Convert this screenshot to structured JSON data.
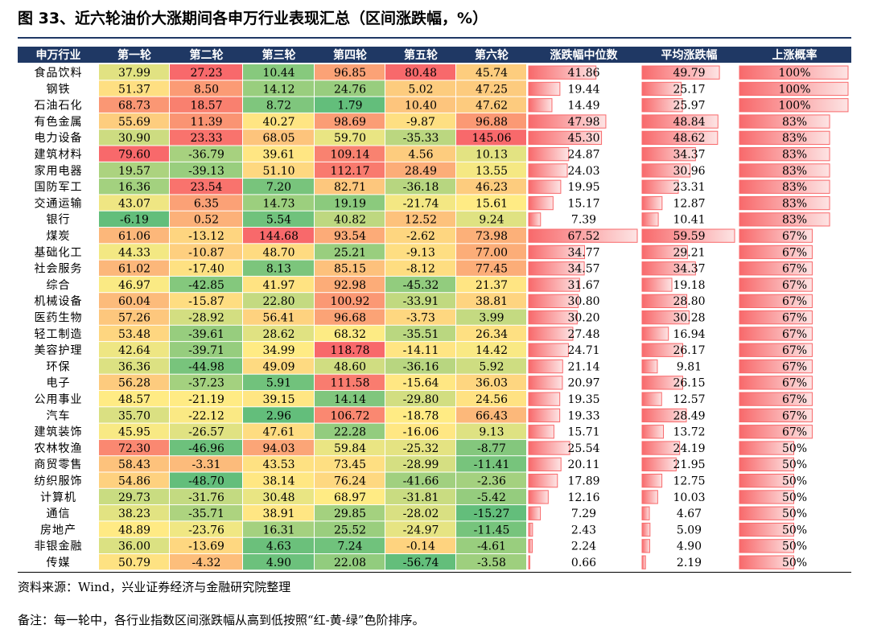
{
  "title": "图 33、近六轮油价大涨期间各申万行业表现汇总（区间涨跌幅，%）",
  "footer": {
    "source": "资料来源：Wind，兴业证券经济与金融研究院整理",
    "note": "备注：每一轮中，各行业指数区间涨跌幅从高到低按照“红-黄-绿”色阶排序。"
  },
  "colors": {
    "header_bg": "#1f3864",
    "header_text": "#ffffff",
    "red": "#f8696b",
    "yellow": "#ffeb84",
    "green": "#63be7b",
    "bar_fill": "#f8696b"
  },
  "chart_data": {
    "type": "table",
    "columns": [
      "申万行业",
      "第一轮",
      "第二轮",
      "第三轮",
      "第四轮",
      "第五轮",
      "第六轮",
      "涨跌幅中位数",
      "平均涨跌幅",
      "上涨概率"
    ],
    "rows": [
      {
        "industry": "食品饮料",
        "rounds": [
          37.99,
          27.23,
          10.44,
          96.85,
          80.48,
          45.74
        ],
        "median": "41.86",
        "mean": "49.79",
        "prob": "100%"
      },
      {
        "industry": "钢铁",
        "rounds": [
          51.37,
          8.5,
          14.12,
          24.76,
          5.02,
          47.25
        ],
        "median": "19.44",
        "mean": "25.17",
        "prob": "100%"
      },
      {
        "industry": "石油石化",
        "rounds": [
          68.73,
          18.57,
          8.72,
          1.79,
          10.4,
          47.62
        ],
        "median": "14.49",
        "mean": "25.97",
        "prob": "100%"
      },
      {
        "industry": "有色金属",
        "rounds": [
          55.69,
          11.39,
          40.27,
          98.69,
          -9.87,
          96.88
        ],
        "median": "47.98",
        "mean": "48.84",
        "prob": "83%"
      },
      {
        "industry": "电力设备",
        "rounds": [
          30.9,
          23.33,
          68.05,
          59.7,
          -35.33,
          145.06
        ],
        "median": "45.30",
        "mean": "48.62",
        "prob": "83%"
      },
      {
        "industry": "建筑材料",
        "rounds": [
          79.6,
          -36.79,
          39.61,
          109.14,
          4.56,
          10.13
        ],
        "median": "24.87",
        "mean": "34.37",
        "prob": "83%"
      },
      {
        "industry": "家用电器",
        "rounds": [
          19.57,
          -39.13,
          51.1,
          112.17,
          28.49,
          13.55
        ],
        "median": "24.03",
        "mean": "30.96",
        "prob": "83%"
      },
      {
        "industry": "国防军工",
        "rounds": [
          16.36,
          23.54,
          7.2,
          82.71,
          -36.18,
          46.23
        ],
        "median": "19.95",
        "mean": "23.31",
        "prob": "83%"
      },
      {
        "industry": "交通运输",
        "rounds": [
          43.07,
          6.35,
          14.73,
          19.19,
          -21.74,
          15.61
        ],
        "median": "15.17",
        "mean": "12.87",
        "prob": "83%"
      },
      {
        "industry": "银行",
        "rounds": [
          -6.19,
          0.52,
          5.54,
          40.82,
          12.52,
          9.24
        ],
        "median": "7.39",
        "mean": "10.41",
        "prob": "83%"
      },
      {
        "industry": "煤炭",
        "rounds": [
          61.06,
          -13.12,
          144.68,
          93.54,
          -2.62,
          73.98
        ],
        "median": "67.52",
        "mean": "59.59",
        "prob": "67%"
      },
      {
        "industry": "基础化工",
        "rounds": [
          44.33,
          -10.87,
          48.7,
          25.21,
          -9.13,
          77.0
        ],
        "median": "34.77",
        "mean": "29.21",
        "prob": "67%"
      },
      {
        "industry": "社会服务",
        "rounds": [
          61.02,
          -17.4,
          8.13,
          85.15,
          -8.12,
          77.45
        ],
        "median": "34.57",
        "mean": "34.37",
        "prob": "67%"
      },
      {
        "industry": "综合",
        "rounds": [
          46.97,
          -42.85,
          41.97,
          92.98,
          -45.32,
          21.37
        ],
        "median": "31.67",
        "mean": "19.18",
        "prob": "67%"
      },
      {
        "industry": "机械设备",
        "rounds": [
          60.04,
          -15.87,
          22.8,
          100.92,
          -33.91,
          38.81
        ],
        "median": "30.80",
        "mean": "28.80",
        "prob": "67%"
      },
      {
        "industry": "医药生物",
        "rounds": [
          57.26,
          -28.92,
          56.41,
          96.68,
          -3.73,
          3.99
        ],
        "median": "30.20",
        "mean": "30.28",
        "prob": "67%"
      },
      {
        "industry": "轻工制造",
        "rounds": [
          53.48,
          -39.61,
          28.62,
          68.32,
          -35.51,
          26.34
        ],
        "median": "27.48",
        "mean": "16.94",
        "prob": "67%"
      },
      {
        "industry": "美容护理",
        "rounds": [
          42.64,
          -39.71,
          34.99,
          118.78,
          -14.11,
          14.42
        ],
        "median": "24.71",
        "mean": "26.17",
        "prob": "67%"
      },
      {
        "industry": "环保",
        "rounds": [
          36.36,
          -44.98,
          49.09,
          48.6,
          -36.16,
          5.92
        ],
        "median": "21.14",
        "mean": "9.81",
        "prob": "67%"
      },
      {
        "industry": "电子",
        "rounds": [
          56.28,
          -37.23,
          5.91,
          111.58,
          -15.64,
          36.03
        ],
        "median": "20.97",
        "mean": "26.15",
        "prob": "67%"
      },
      {
        "industry": "公用事业",
        "rounds": [
          48.57,
          -21.19,
          39.15,
          14.14,
          -29.8,
          24.56
        ],
        "median": "19.35",
        "mean": "12.57",
        "prob": "67%"
      },
      {
        "industry": "汽车",
        "rounds": [
          35.7,
          -22.12,
          2.96,
          106.72,
          -18.78,
          66.43
        ],
        "median": "19.33",
        "mean": "28.49",
        "prob": "67%"
      },
      {
        "industry": "建筑装饰",
        "rounds": [
          45.95,
          -26.57,
          47.61,
          22.28,
          -16.06,
          9.13
        ],
        "median": "15.71",
        "mean": "13.72",
        "prob": "67%"
      },
      {
        "industry": "农林牧渔",
        "rounds": [
          72.3,
          -46.96,
          94.03,
          59.84,
          -25.32,
          -8.77
        ],
        "median": "25.54",
        "mean": "24.19",
        "prob": "50%"
      },
      {
        "industry": "商贸零售",
        "rounds": [
          58.43,
          -3.31,
          43.53,
          73.45,
          -28.99,
          -11.41
        ],
        "median": "20.11",
        "mean": "21.95",
        "prob": "50%"
      },
      {
        "industry": "纺织服饰",
        "rounds": [
          54.86,
          -48.7,
          38.14,
          76.24,
          -41.66,
          -2.36
        ],
        "median": "17.89",
        "mean": "12.75",
        "prob": "50%"
      },
      {
        "industry": "计算机",
        "rounds": [
          29.73,
          -31.76,
          30.48,
          68.97,
          -31.81,
          -5.42
        ],
        "median": "12.16",
        "mean": "10.03",
        "prob": "50%"
      },
      {
        "industry": "通信",
        "rounds": [
          38.23,
          -35.71,
          38.91,
          29.85,
          -28.02,
          -15.27
        ],
        "median": "7.29",
        "mean": "4.67",
        "prob": "50%"
      },
      {
        "industry": "房地产",
        "rounds": [
          48.89,
          -23.76,
          16.31,
          25.52,
          -24.97,
          -11.45
        ],
        "median": "2.43",
        "mean": "5.09",
        "prob": "50%"
      },
      {
        "industry": "非银金融",
        "rounds": [
          36.0,
          -13.69,
          4.63,
          7.24,
          -0.14,
          -4.61
        ],
        "median": "2.24",
        "mean": "4.90",
        "prob": "50%"
      },
      {
        "industry": "传媒",
        "rounds": [
          50.79,
          -4.32,
          4.9,
          22.08,
          -56.74,
          -3.58
        ],
        "median": "0.66",
        "mean": "2.19",
        "prob": "50%"
      }
    ]
  }
}
